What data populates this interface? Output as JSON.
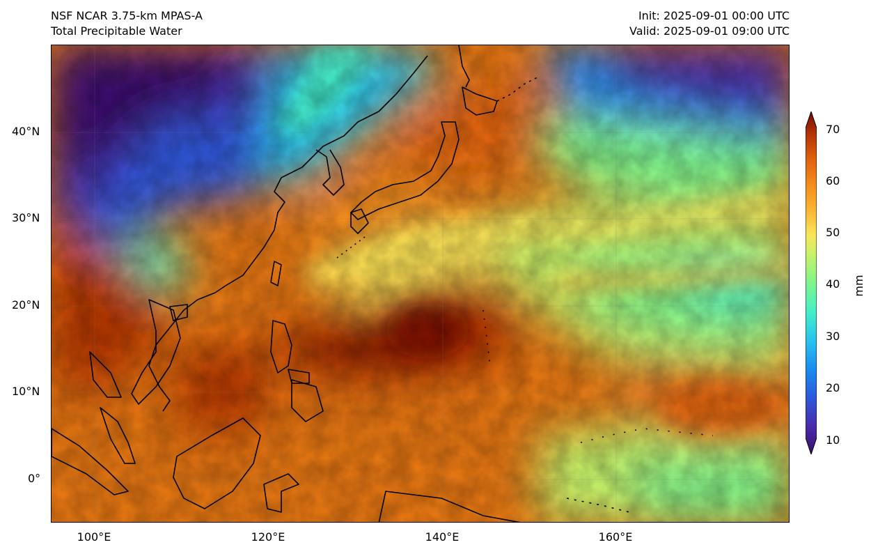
{
  "header": {
    "title_left_1": "NSF NCAR 3.75-km MPAS-A",
    "title_left_2": "Total Precipitable Water",
    "title_right_1": "Init: 2025-09-01 00:00 UTC",
    "title_right_2": "Valid: 2025-09-01 09:00 UTC"
  },
  "map": {
    "projection": "PlateCarree",
    "lon_range": [
      95,
      180
    ],
    "lat_range": [
      -5,
      50
    ],
    "x_ticks": [
      "100°E",
      "120°E",
      "140°E",
      "160°E"
    ],
    "x_tick_values": [
      100,
      120,
      140,
      160
    ],
    "y_ticks": [
      "40°N",
      "30°N",
      "20°N",
      "10°N",
      "0°"
    ],
    "y_tick_values": [
      40,
      30,
      20,
      10,
      0
    ],
    "grid": true,
    "coastlines": true
  },
  "colorbar": {
    "label": "mm",
    "ticks": [
      "70",
      "60",
      "50",
      "40",
      "30",
      "20",
      "10"
    ],
    "tick_values": [
      70,
      60,
      50,
      40,
      30,
      20,
      10
    ],
    "range": [
      10,
      70
    ],
    "extend": "both",
    "colors": [
      "#3b0f70",
      "#4a2aa8",
      "#2f56d8",
      "#1a86f0",
      "#27c2ee",
      "#46f0c4",
      "#7ff58a",
      "#c4f26a",
      "#f9e65a",
      "#fbbd3a",
      "#f58f1d",
      "#e0620c",
      "#b63705",
      "#7a0b04"
    ]
  }
}
